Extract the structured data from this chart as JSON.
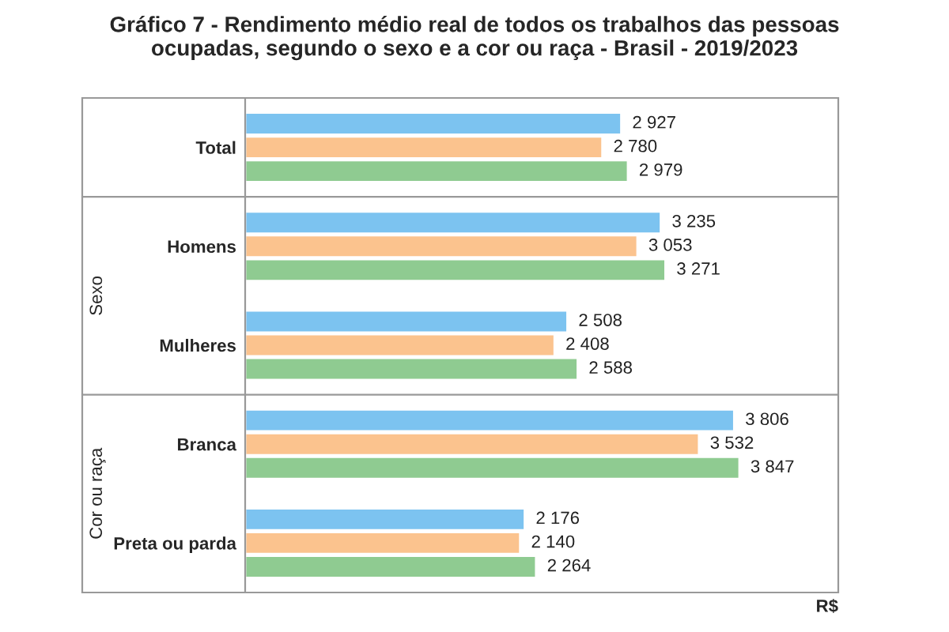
{
  "chart_data": {
    "type": "bar",
    "orientation": "horizontal",
    "title": "Gráfico 7 - Rendimento médio real de todos os trabalhos das pessoas\nocupadas, segundo o sexo e a cor ou raça - Brasil - 2019/2023",
    "xlabel": "R$",
    "categories": [
      "Total",
      "Homens",
      "Mulheres",
      "Branca",
      "Preta ou parda"
    ],
    "annotations": [
      "Sexo",
      "Cor ou raça"
    ],
    "series": [
      {
        "color": "#7cc3f0",
        "values": [
          2927,
          3235,
          2508,
          3806,
          2176
        ],
        "value_labels": [
          "2 927",
          "3 235",
          "2 508",
          "3 806",
          "2 176"
        ]
      },
      {
        "color": "#fbc38e",
        "values": [
          2780,
          3053,
          2408,
          3532,
          2140
        ],
        "value_labels": [
          "2 780",
          "3 053",
          "2 408",
          "3 532",
          "2 140"
        ]
      },
      {
        "color": "#8fcb91",
        "values": [
          2979,
          3271,
          2588,
          3847,
          2264
        ],
        "value_labels": [
          "2 979",
          "3 271",
          "2 588",
          "3 847",
          "2 264"
        ]
      }
    ],
    "grid": false,
    "legend": false
  }
}
